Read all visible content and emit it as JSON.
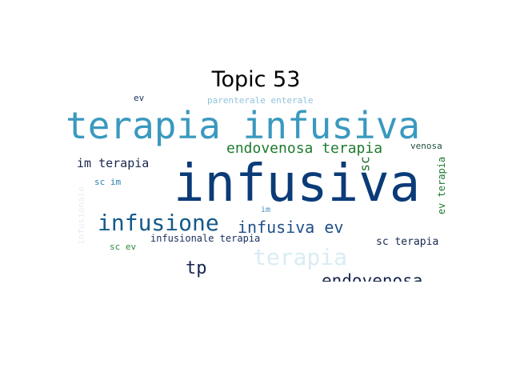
{
  "title": "Topic 53",
  "words": [
    {
      "text": "infusiva",
      "color": "#0b3b78"
    },
    {
      "text": "terapia infusiva",
      "color": "#3a99bf"
    },
    {
      "text": "endovenosa terapia",
      "color": "#1f7a2f"
    },
    {
      "text": "infusione",
      "color": "#145a8a"
    },
    {
      "text": "infusiva ev",
      "color": "#1f4f8a"
    },
    {
      "text": "terapia",
      "color": "#d9ecf4"
    },
    {
      "text": "endovenosa",
      "color": "#17264d"
    },
    {
      "text": "tp",
      "color": "#17264d"
    },
    {
      "text": "im terapia",
      "color": "#17264d"
    },
    {
      "text": "parenterale enterale",
      "color": "#8fc3dd"
    },
    {
      "text": "ev",
      "color": "#1a3060"
    },
    {
      "text": "venosa",
      "color": "#1f4f3a"
    },
    {
      "text": "sc",
      "color": "#1f6a2a"
    },
    {
      "text": "ev terapia",
      "color": "#1f7a2f"
    },
    {
      "text": "sc im",
      "color": "#2a7fb5"
    },
    {
      "text": "infusionale",
      "color": "#e6eef5"
    },
    {
      "text": "im",
      "color": "#4a90c2"
    },
    {
      "text": "infusionale terapia",
      "color": "#1a3060"
    },
    {
      "text": "sc ev",
      "color": "#2a8a3a"
    },
    {
      "text": "sc terapia",
      "color": "#17264d"
    }
  ]
}
